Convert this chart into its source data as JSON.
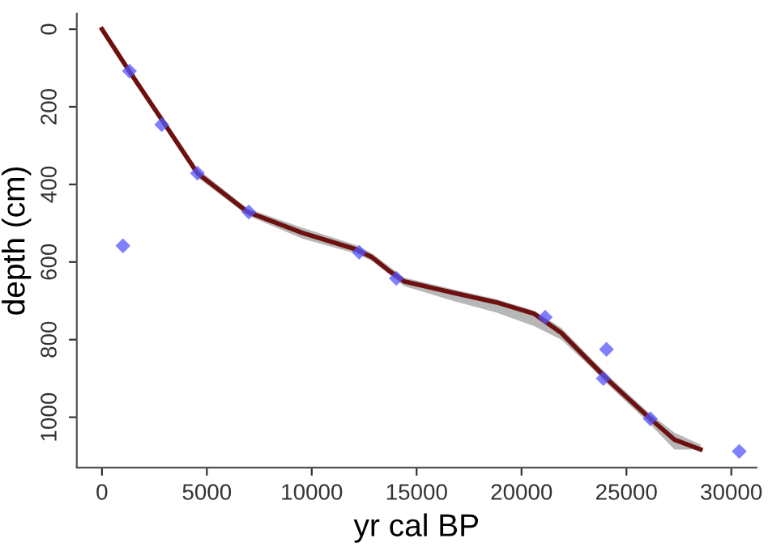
{
  "chart_data": {
    "type": "line",
    "xlabel": "yr cal BP",
    "ylabel": "depth (cm)",
    "xlim": [
      -1200,
      31200
    ],
    "ylim": [
      1130,
      -40
    ],
    "xticks": [
      0,
      5000,
      10000,
      15000,
      20000,
      25000,
      30000
    ],
    "yticks": [
      0,
      200,
      400,
      600,
      800,
      1000
    ],
    "grid": false,
    "legend": false,
    "series": [
      {
        "color": "#6e1010",
        "line_style": "solid",
        "marker": "none",
        "x": [
          0,
          1300,
          2850,
          4550,
          6940,
          9560,
          12100,
          12880,
          13650,
          14400,
          16730,
          18800,
          20590,
          21900,
          23130,
          24200,
          25980,
          27290,
          28530
        ],
        "values": [
          0,
          108,
          233,
          371,
          471,
          525,
          567,
          588,
          621,
          650,
          679,
          704,
          733,
          783,
          850,
          908,
          996,
          1058,
          1083
        ],
        "lower": [
          0,
          100,
          222,
          360,
          462,
          512,
          556,
          578,
          610,
          640,
          670,
          696,
          725,
          770,
          838,
          896,
          984,
          1040,
          1070
        ],
        "upper": [
          0,
          116,
          244,
          382,
          480,
          540,
          578,
          598,
          630,
          662,
          700,
          730,
          765,
          800,
          862,
          920,
          1010,
          1083,
          1083
        ]
      },
      {
        "type": "scatter",
        "color": "#5555ff",
        "marker": "diamond",
        "x": [
          1310,
          2850,
          4550,
          7000,
          12260,
          14030,
          21130,
          23900,
          24050,
          26140,
          30380,
          1000
        ],
        "values": [
          108,
          246,
          371,
          471,
          575,
          642,
          742,
          900,
          825,
          1004,
          1088,
          558
        ]
      }
    ]
  }
}
